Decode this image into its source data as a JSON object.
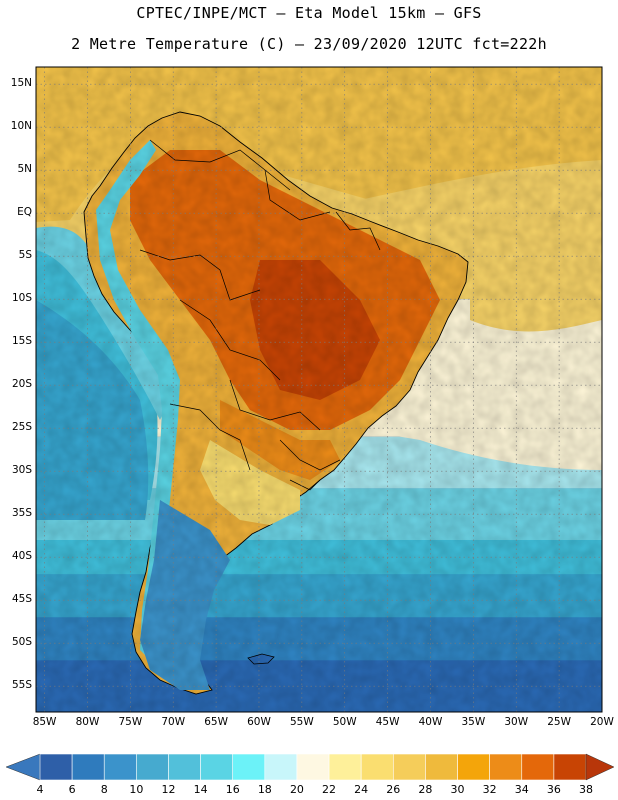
{
  "title": {
    "line1": "CPTEC/INPE/MCT –  Eta Model 15km – GFS",
    "line2": "2 Metre Temperature (C) – 23/09/2020 12UTC fct=222h"
  },
  "map": {
    "lat_range": [
      -58,
      17
    ],
    "lon_range": [
      -86,
      -20
    ],
    "lat_labels": [
      "15N",
      "10N",
      "5N",
      "EQ",
      "5S",
      "10S",
      "15S",
      "20S",
      "25S",
      "30S",
      "35S",
      "40S",
      "45S",
      "50S",
      "55S"
    ],
    "lon_labels": [
      "85W",
      "80W",
      "75W",
      "70W",
      "65W",
      "60W",
      "55W",
      "50W",
      "45W",
      "40W",
      "35W",
      "30W",
      "25W",
      "20W"
    ],
    "ocean_band_colors": [
      "#f4c44a",
      "#f8d468",
      "#fef6d8",
      "#a8e8f0",
      "#6cd4e6",
      "#40c0dc",
      "#36a6d0",
      "#2f84c3",
      "#2a6ab6"
    ]
  },
  "colorbar": {
    "colors": [
      "#2e5fa8",
      "#2f7bbd",
      "#3b93cb",
      "#46aacf",
      "#52c0da",
      "#5ad4e4",
      "#6cf2f8",
      "#c8f6fa",
      "#fef8e2",
      "#fef09a",
      "#fade70",
      "#f5cd5a",
      "#efba3c",
      "#f4a50a",
      "#ed8c18",
      "#e4680a",
      "#c84404"
    ],
    "end_low_color": "#3978bd",
    "end_high_color": "#b8360a",
    "labels": [
      "4",
      "6",
      "8",
      "10",
      "12",
      "14",
      "16",
      "18",
      "20",
      "22",
      "24",
      "26",
      "28",
      "30",
      "32",
      "34",
      "36",
      "38"
    ]
  }
}
